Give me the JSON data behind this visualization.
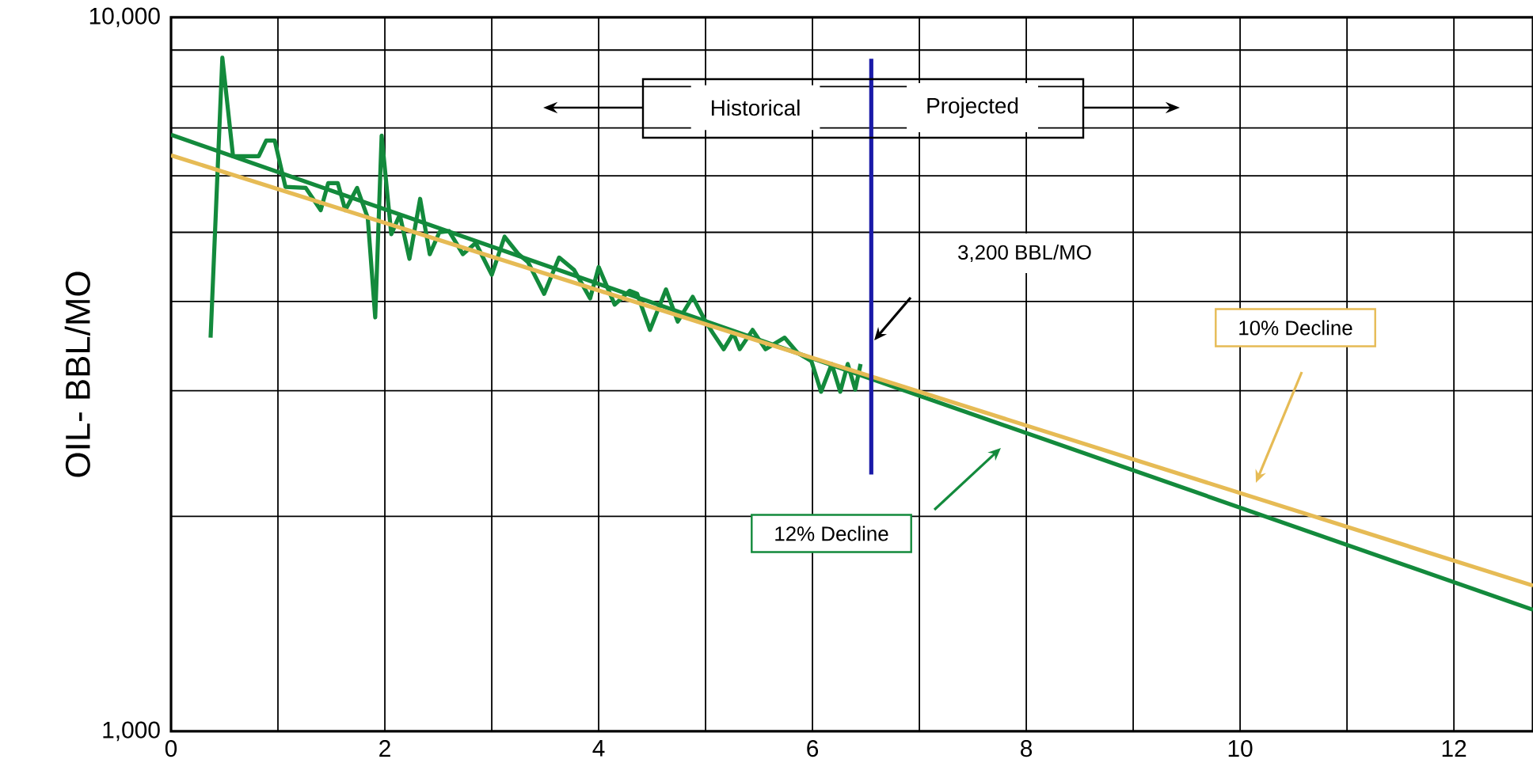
{
  "chart_data": {
    "type": "line",
    "ylabel": "OIL- BBL/MO",
    "log": "y",
    "grid": true,
    "xlim": [
      0,
      12.74
    ],
    "ylim": [
      1000,
      10000
    ],
    "xticks": [
      0,
      {
        "value": 1,
        "label": null
      },
      2,
      {
        "value": 3,
        "label": null
      },
      4,
      {
        "value": 5,
        "label": null
      },
      6,
      {
        "value": 7,
        "label": null
      },
      8,
      {
        "value": 9,
        "label": null
      },
      10,
      {
        "value": 11,
        "label": null
      },
      12
    ],
    "yticks": [
      {
        "value": 1000,
        "label": "1,000"
      },
      {
        "value": 2000,
        "label": null
      },
      {
        "value": 3000,
        "label": null
      },
      {
        "value": 4000,
        "label": null
      },
      {
        "value": 5000,
        "label": null
      },
      {
        "value": 6000,
        "label": null
      },
      {
        "value": 7000,
        "label": null
      },
      {
        "value": 8000,
        "label": null
      },
      {
        "value": 9000,
        "label": null
      },
      {
        "value": 10000,
        "label": "10,000"
      }
    ],
    "series": [
      {
        "type": "line",
        "color": "#138a3c",
        "x": [
          0.37,
          0.48,
          0.58,
          0.82,
          0.89,
          0.97,
          1.07,
          1.26,
          1.4,
          1.47,
          1.56,
          1.63,
          1.74,
          1.84,
          1.91,
          1.97,
          2.06,
          2.14,
          2.23,
          2.33,
          2.42,
          2.51,
          2.6,
          2.73,
          2.85,
          3.0,
          3.12,
          3.25,
          3.34,
          3.49,
          3.63,
          3.77,
          3.92,
          4.0,
          4.15,
          4.29,
          4.36,
          4.48,
          4.63,
          4.74,
          4.88,
          5.0,
          5.07,
          5.17,
          5.26,
          5.32,
          5.44,
          5.56,
          5.74,
          5.86,
          5.99,
          6.08,
          6.18,
          6.26,
          6.33,
          6.4,
          6.45
        ],
        "values": [
          3560,
          8780,
          6390,
          6390,
          6720,
          6720,
          5790,
          5770,
          5370,
          5860,
          5860,
          5370,
          5770,
          5240,
          3800,
          6830,
          4970,
          5290,
          4590,
          5570,
          4660,
          5000,
          5020,
          4660,
          4830,
          4360,
          4930,
          4660,
          4540,
          4100,
          4610,
          4430,
          4040,
          4470,
          3960,
          4140,
          4100,
          3650,
          4160,
          3750,
          4060,
          3750,
          3610,
          3430,
          3610,
          3430,
          3650,
          3430,
          3560,
          3390,
          3300,
          2990,
          3270,
          2990,
          3270,
          3010,
          3270
        ]
      },
      {
        "type": "line",
        "color": "#138a3c",
        "x": [
          0,
          12.74
        ],
        "values": [
          6850,
          1480
        ]
      },
      {
        "type": "line",
        "color": "#e6bb55",
        "x": [
          0,
          12.74
        ],
        "values": [
          6410,
          1600
        ]
      },
      {
        "type": "line",
        "color": "#1a1aa8",
        "x": [
          6.55,
          6.55
        ],
        "values": [
          8750,
          2290
        ]
      }
    ],
    "annotations": [
      "Historical",
      "Projected",
      "3,200 BBL/MO",
      "12% Decline",
      "10% Decline"
    ]
  }
}
